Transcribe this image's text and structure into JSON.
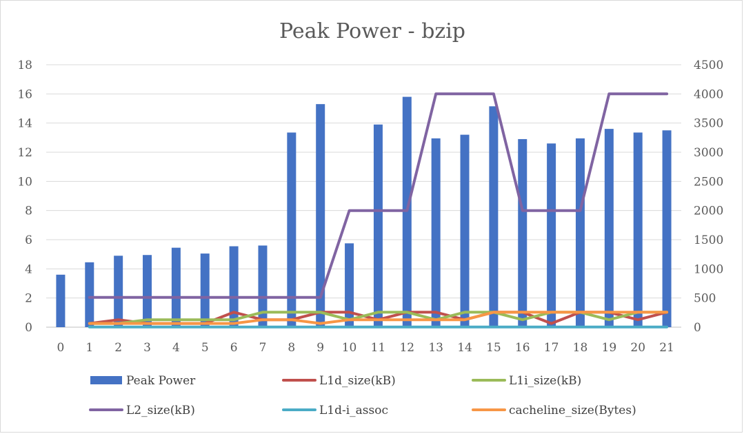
{
  "chart_data": {
    "type": "bar+line",
    "title": "Peak Power - bzip",
    "categories": [
      "0",
      "1",
      "2",
      "3",
      "4",
      "5",
      "6",
      "7",
      "8",
      "9",
      "10",
      "11",
      "12",
      "13",
      "14",
      "15",
      "16",
      "17",
      "18",
      "19",
      "20",
      "21"
    ],
    "y_left": {
      "ylim": [
        0,
        18
      ],
      "ticks": [
        "0",
        "2",
        "4",
        "6",
        "8",
        "10",
        "12",
        "14",
        "16",
        "18"
      ]
    },
    "y_right": {
      "ylim": [
        0,
        4500
      ],
      "ticks": [
        "0",
        "500",
        "1000",
        "1500",
        "2000",
        "2500",
        "3000",
        "3500",
        "4000",
        "4500"
      ]
    },
    "grid": true,
    "legend_position": "bottom",
    "series": [
      {
        "name": "Peak Power",
        "kind": "bar",
        "axis": "left",
        "color": "#4472C4",
        "values": [
          3.6,
          4.45,
          4.9,
          4.95,
          5.45,
          5.05,
          5.55,
          5.6,
          13.35,
          15.3,
          5.75,
          13.9,
          15.8,
          12.95,
          13.2,
          15.15,
          12.9,
          12.6,
          12.95,
          13.6,
          13.35,
          13.5
        ]
      },
      {
        "name": "L1d_size(kB)",
        "kind": "line",
        "axis": "right",
        "color": "#C0504D",
        "values": [
          null,
          64,
          128,
          64,
          64,
          64,
          256,
          128,
          128,
          256,
          256,
          128,
          256,
          256,
          128,
          256,
          256,
          64,
          256,
          256,
          128,
          256
        ]
      },
      {
        "name": "L1i_size(kB)",
        "kind": "line",
        "axis": "right",
        "color": "#9BBB59",
        "values": [
          null,
          64,
          64,
          128,
          128,
          128,
          128,
          256,
          256,
          256,
          128,
          256,
          256,
          128,
          256,
          256,
          128,
          256,
          256,
          128,
          256,
          256
        ]
      },
      {
        "name": "L2_size(kB)",
        "kind": "line",
        "axis": "right",
        "color": "#8064A2",
        "values": [
          null,
          512,
          512,
          512,
          512,
          512,
          512,
          512,
          512,
          512,
          2000,
          2000,
          2000,
          4000,
          4000,
          4000,
          2000,
          2000,
          2000,
          4000,
          4000,
          4000
        ]
      },
      {
        "name": "L1d-i_assoc",
        "kind": "line",
        "axis": "right",
        "color": "#4BACC6",
        "values": [
          null,
          2,
          2,
          2,
          2,
          2,
          2,
          2,
          2,
          2,
          2,
          2,
          2,
          2,
          2,
          2,
          2,
          2,
          2,
          2,
          2,
          2
        ]
      },
      {
        "name": "cacheline_size(Bytes)",
        "kind": "line",
        "axis": "right",
        "color": "#F79646",
        "values": [
          null,
          64,
          64,
          64,
          64,
          64,
          64,
          128,
          128,
          64,
          128,
          128,
          128,
          128,
          128,
          256,
          256,
          256,
          256,
          256,
          256,
          256
        ]
      }
    ]
  }
}
